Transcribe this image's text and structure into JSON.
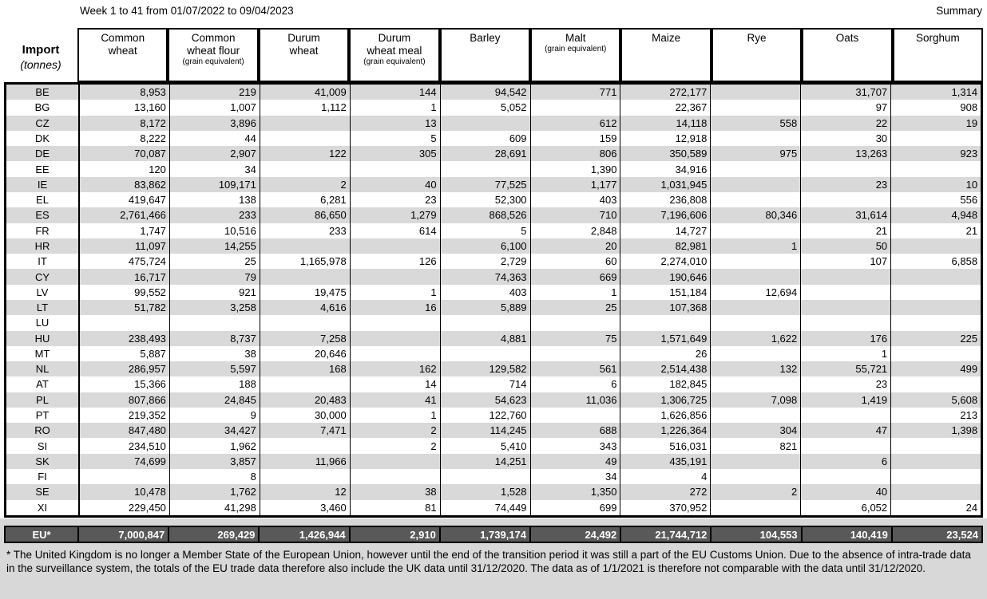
{
  "header": {
    "title": "Week 1 to 41 from 01/07/2022 to 09/04/2023",
    "summary": "Summary"
  },
  "table": {
    "row_header_title": "Import",
    "row_header_unit": "(tonnes)",
    "columns": [
      {
        "label": "Common\nwheat",
        "sub": ""
      },
      {
        "label": "Common\nwheat flour",
        "sub": "(grain equivalent)"
      },
      {
        "label": "Durum\nwheat",
        "sub": ""
      },
      {
        "label": "Durum\nwheat meal",
        "sub": "(grain equivalent)"
      },
      {
        "label": "Barley",
        "sub": ""
      },
      {
        "label": "Malt",
        "sub": "(grain equivalent)"
      },
      {
        "label": "Maize",
        "sub": ""
      },
      {
        "label": "Rye",
        "sub": ""
      },
      {
        "label": "Oats",
        "sub": ""
      },
      {
        "label": "Sorghum",
        "sub": ""
      }
    ],
    "rows": [
      {
        "code": "BE",
        "values": [
          "8,953",
          "219",
          "41,009",
          "144",
          "94,542",
          "771",
          "272,177",
          "",
          "31,707",
          "1,314"
        ]
      },
      {
        "code": "BG",
        "values": [
          "13,160",
          "1,007",
          "1,112",
          "1",
          "5,052",
          "",
          "22,367",
          "",
          "97",
          "908"
        ]
      },
      {
        "code": "CZ",
        "values": [
          "8,172",
          "3,896",
          "",
          "13",
          "",
          "612",
          "14,118",
          "558",
          "22",
          "19"
        ]
      },
      {
        "code": "DK",
        "values": [
          "8,222",
          "44",
          "",
          "5",
          "609",
          "159",
          "12,918",
          "",
          "30",
          ""
        ]
      },
      {
        "code": "DE",
        "values": [
          "70,087",
          "2,907",
          "122",
          "305",
          "28,691",
          "806",
          "350,589",
          "975",
          "13,263",
          "923"
        ]
      },
      {
        "code": "EE",
        "values": [
          "120",
          "34",
          "",
          "",
          "",
          "1,390",
          "34,916",
          "",
          "",
          ""
        ]
      },
      {
        "code": "IE",
        "values": [
          "83,862",
          "109,171",
          "2",
          "40",
          "77,525",
          "1,177",
          "1,031,945",
          "",
          "23",
          "10"
        ]
      },
      {
        "code": "EL",
        "values": [
          "419,647",
          "138",
          "6,281",
          "23",
          "52,300",
          "403",
          "236,808",
          "",
          "",
          "556"
        ]
      },
      {
        "code": "ES",
        "values": [
          "2,761,466",
          "233",
          "86,650",
          "1,279",
          "868,526",
          "710",
          "7,196,606",
          "80,346",
          "31,614",
          "4,948"
        ]
      },
      {
        "code": "FR",
        "values": [
          "1,747",
          "10,516",
          "233",
          "614",
          "5",
          "2,848",
          "14,727",
          "",
          "21",
          "21"
        ]
      },
      {
        "code": "HR",
        "values": [
          "11,097",
          "14,255",
          "",
          "",
          "6,100",
          "20",
          "82,981",
          "1",
          "50",
          ""
        ]
      },
      {
        "code": "IT",
        "values": [
          "475,724",
          "25",
          "1,165,978",
          "126",
          "2,729",
          "60",
          "2,274,010",
          "",
          "107",
          "6,858"
        ]
      },
      {
        "code": "CY",
        "values": [
          "16,717",
          "79",
          "",
          "",
          "74,363",
          "669",
          "190,646",
          "",
          "",
          ""
        ]
      },
      {
        "code": "LV",
        "values": [
          "99,552",
          "921",
          "19,475",
          "1",
          "403",
          "1",
          "151,184",
          "12,694",
          "",
          ""
        ]
      },
      {
        "code": "LT",
        "values": [
          "51,782",
          "3,258",
          "4,616",
          "16",
          "5,889",
          "25",
          "107,368",
          "",
          "",
          ""
        ]
      },
      {
        "code": "LU",
        "values": [
          "",
          "",
          "",
          "",
          "",
          "",
          "",
          "",
          "",
          ""
        ]
      },
      {
        "code": "HU",
        "values": [
          "238,493",
          "8,737",
          "7,258",
          "",
          "4,881",
          "75",
          "1,571,649",
          "1,622",
          "176",
          "225"
        ]
      },
      {
        "code": "MT",
        "values": [
          "5,887",
          "38",
          "20,646",
          "",
          "",
          "",
          "26",
          "",
          "1",
          ""
        ]
      },
      {
        "code": "NL",
        "values": [
          "286,957",
          "5,597",
          "168",
          "162",
          "129,582",
          "561",
          "2,514,438",
          "132",
          "55,721",
          "499"
        ]
      },
      {
        "code": "AT",
        "values": [
          "15,366",
          "188",
          "",
          "14",
          "714",
          "6",
          "182,845",
          "",
          "23",
          ""
        ]
      },
      {
        "code": "PL",
        "values": [
          "807,866",
          "24,845",
          "20,483",
          "41",
          "54,623",
          "11,036",
          "1,306,725",
          "7,098",
          "1,419",
          "5,608"
        ]
      },
      {
        "code": "PT",
        "values": [
          "219,352",
          "9",
          "30,000",
          "1",
          "122,760",
          "",
          "1,626,856",
          "",
          "",
          "213"
        ]
      },
      {
        "code": "RO",
        "values": [
          "847,480",
          "34,427",
          "7,471",
          "2",
          "114,245",
          "688",
          "1,226,364",
          "304",
          "47",
          "1,398"
        ]
      },
      {
        "code": "SI",
        "values": [
          "234,510",
          "1,962",
          "",
          "2",
          "5,410",
          "343",
          "516,031",
          "821",
          "",
          ""
        ]
      },
      {
        "code": "SK",
        "values": [
          "74,699",
          "3,857",
          "11,966",
          "",
          "14,251",
          "49",
          "435,191",
          "",
          "6",
          ""
        ]
      },
      {
        "code": "FI",
        "values": [
          "",
          "8",
          "",
          "",
          "",
          "34",
          "4",
          "",
          "",
          ""
        ]
      },
      {
        "code": "SE",
        "values": [
          "10,478",
          "1,762",
          "12",
          "38",
          "1,528",
          "1,350",
          "272",
          "2",
          "40",
          ""
        ]
      },
      {
        "code": "XI",
        "values": [
          "229,450",
          "41,298",
          "3,460",
          "81",
          "74,449",
          "699",
          "370,952",
          "",
          "6,052",
          "24"
        ]
      }
    ],
    "total_row": {
      "code": "EU*",
      "values": [
        "7,000,847",
        "269,429",
        "1,426,944",
        "2,910",
        "1,739,174",
        "24,492",
        "21,744,712",
        "104,553",
        "140,419",
        "23,524"
      ]
    }
  },
  "footnote": "* The United Kingdom is no longer a Member State of the European Union, however until the end of the transition period it was still a part of the EU Customs Union. Due to the absence of intra-trade data in the surveillance system, the totals of the EU trade data therefore also include the UK data until 31/12/2020. The data as of 1/1/2021 is therefore not comparable with the data until 31/12/2020.",
  "colors": {
    "row_alt": "#d9d9d9",
    "total_bg": "#595959",
    "total_text": "#ffffff",
    "page_bottom_bg": "#d8d8d8",
    "border": "#000000"
  }
}
